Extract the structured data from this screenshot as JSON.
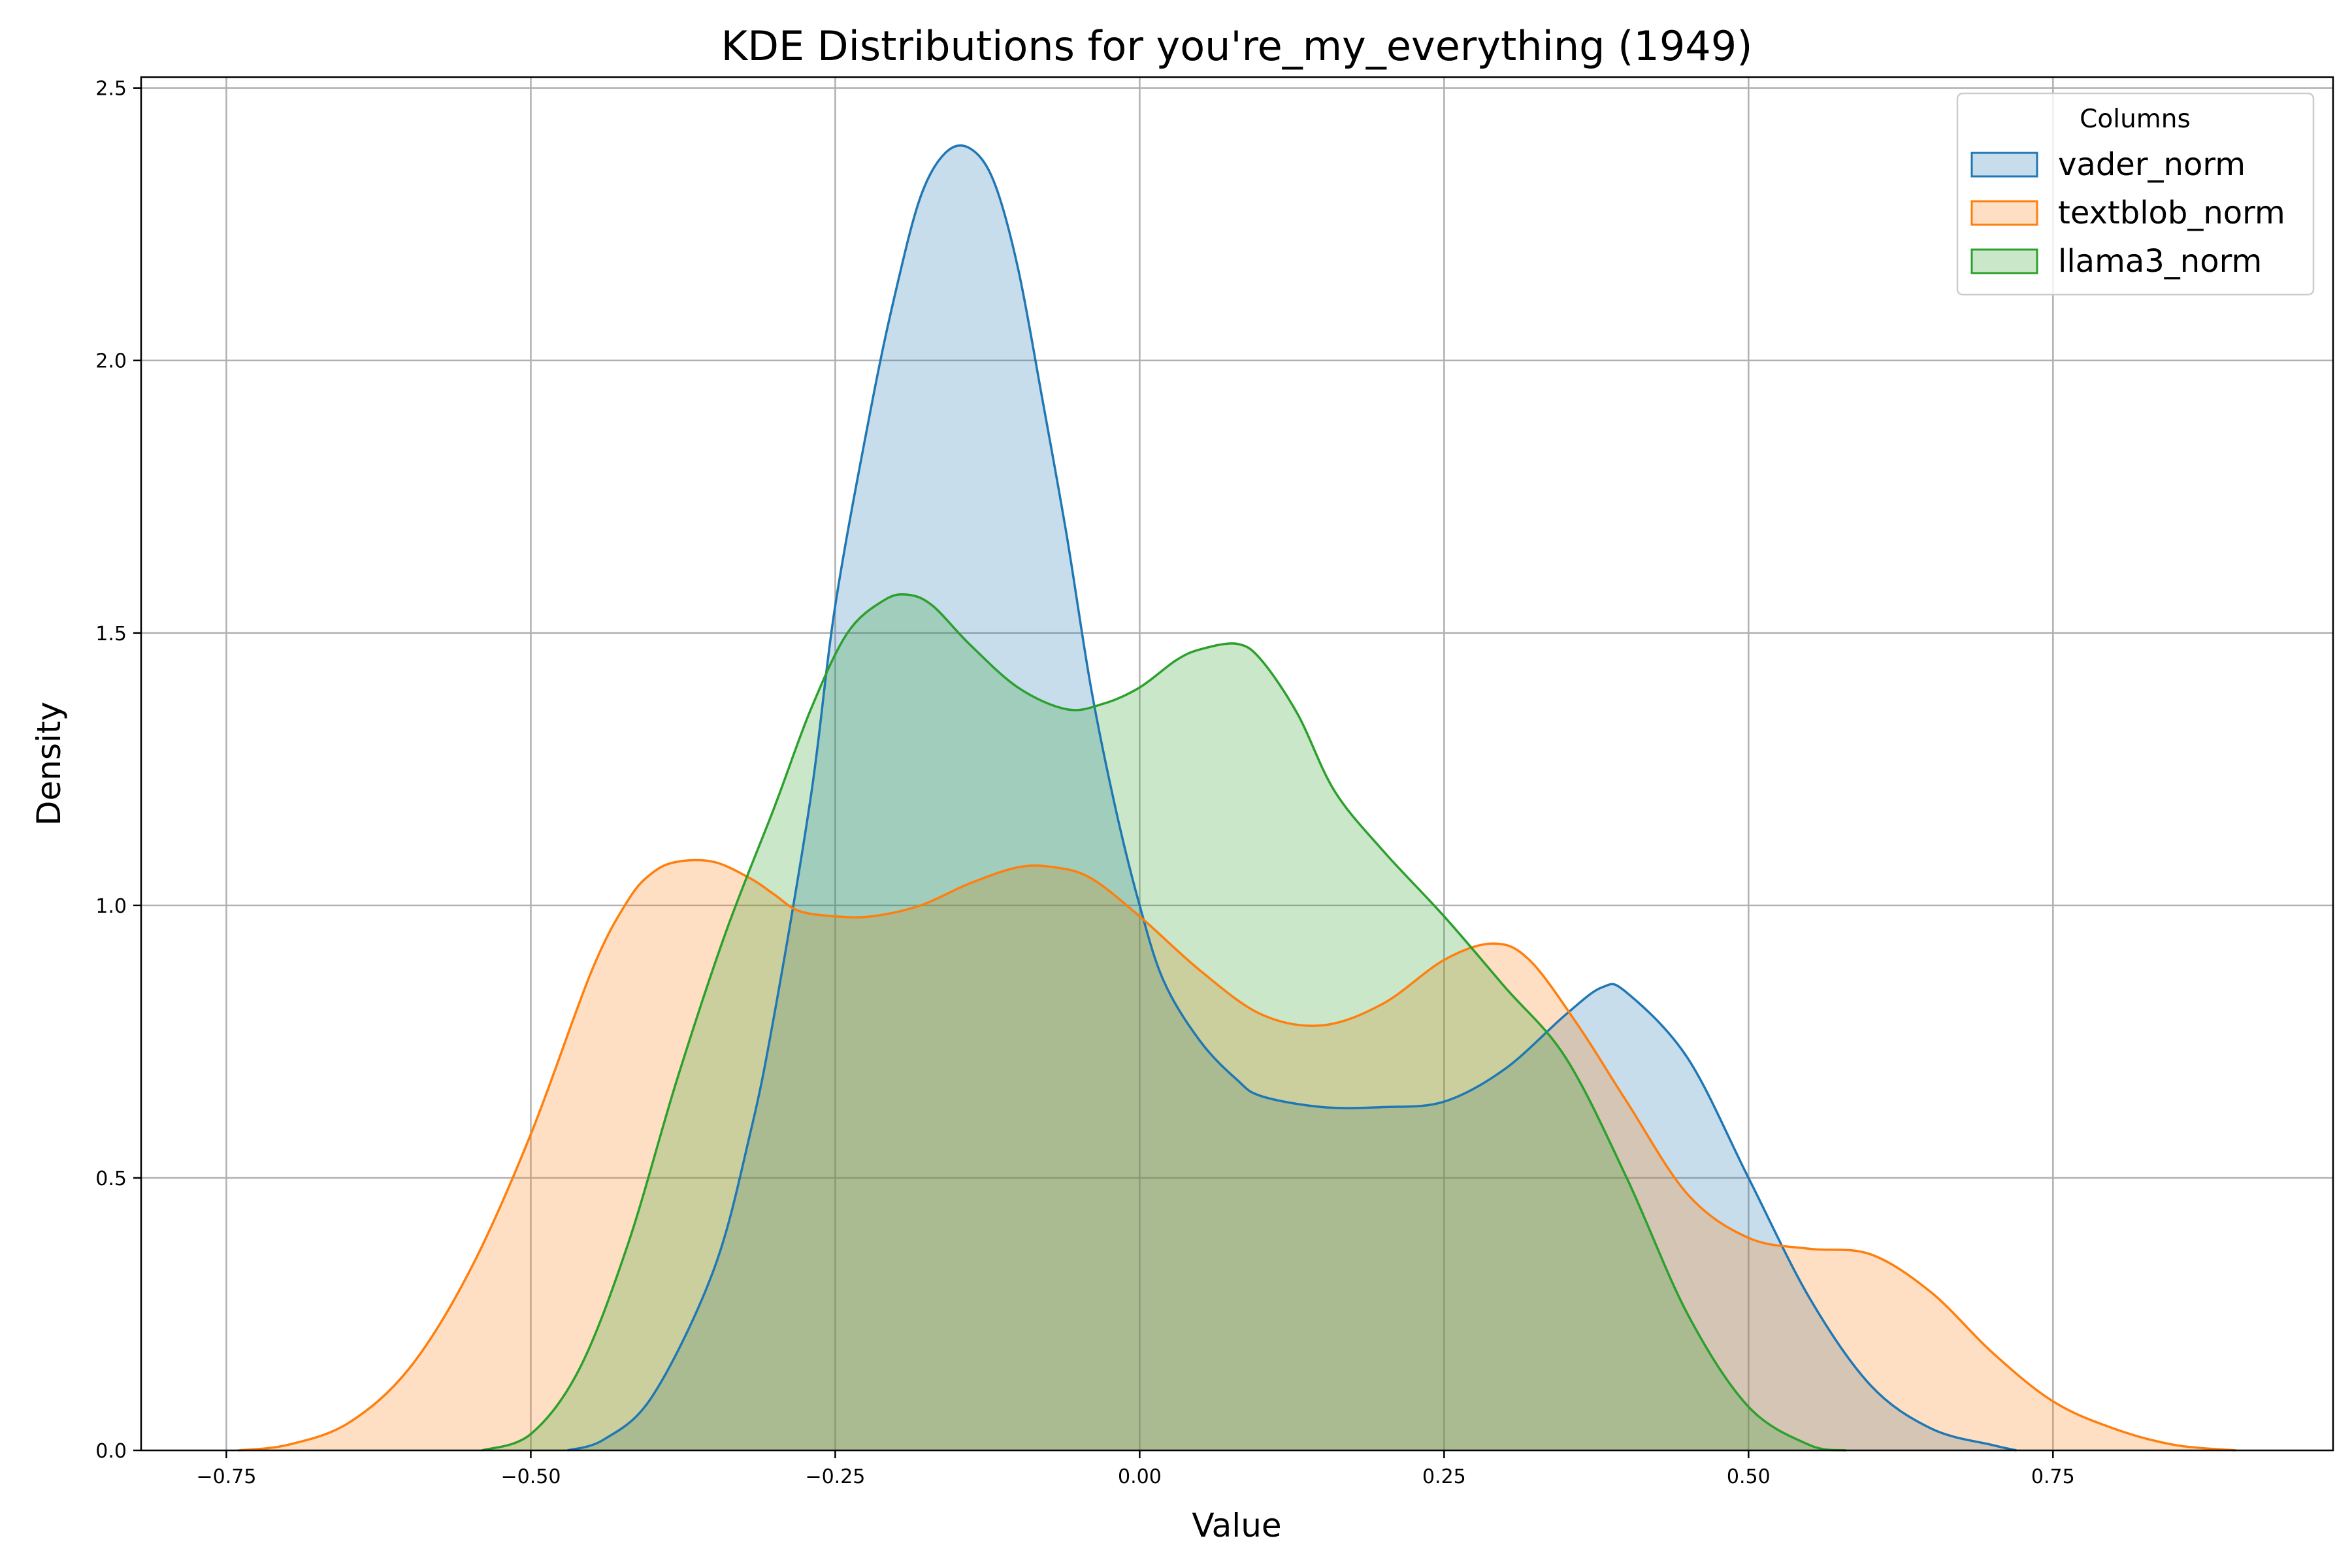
{
  "chart_data": {
    "type": "area",
    "title": "KDE Distributions for you're_my_everything (1949)",
    "xlabel": "Value",
    "ylabel": "Density",
    "xlim": [
      -0.82,
      0.98
    ],
    "ylim": [
      0,
      2.52
    ],
    "xticks": [
      -0.75,
      -0.5,
      -0.25,
      0.0,
      0.25,
      0.5,
      0.75
    ],
    "xtick_labels": [
      "−0.75",
      "−0.50",
      "−0.25",
      "0.00",
      "0.25",
      "0.50",
      "0.75"
    ],
    "yticks": [
      0.0,
      0.5,
      1.0,
      1.5,
      2.0,
      2.5
    ],
    "ytick_labels": [
      "0.0",
      "0.5",
      "1.0",
      "1.5",
      "2.0",
      "2.5"
    ],
    "grid": true,
    "legend": {
      "title": "Columns",
      "position": "top-right"
    },
    "series": [
      {
        "name": "vader_norm",
        "color": "#1f77b4",
        "x": [
          -0.47,
          -0.44,
          -0.4,
          -0.35,
          -0.32,
          -0.3,
          -0.27,
          -0.25,
          -0.22,
          -0.2,
          -0.18,
          -0.16,
          -0.14,
          -0.12,
          -0.1,
          -0.08,
          -0.06,
          -0.04,
          -0.02,
          0.0,
          0.02,
          0.05,
          0.08,
          0.1,
          0.15,
          0.2,
          0.25,
          0.3,
          0.35,
          0.38,
          0.4,
          0.45,
          0.5,
          0.55,
          0.6,
          0.65,
          0.7,
          0.72
        ],
        "y": [
          0.0,
          0.02,
          0.1,
          0.33,
          0.58,
          0.8,
          1.2,
          1.55,
          1.92,
          2.13,
          2.3,
          2.38,
          2.39,
          2.33,
          2.17,
          1.93,
          1.68,
          1.4,
          1.18,
          1.0,
          0.86,
          0.75,
          0.68,
          0.65,
          0.63,
          0.63,
          0.64,
          0.7,
          0.8,
          0.85,
          0.84,
          0.72,
          0.5,
          0.28,
          0.12,
          0.04,
          0.01,
          0.0
        ]
      },
      {
        "name": "textblob_norm",
        "color": "#ff7f0e",
        "x": [
          -0.74,
          -0.7,
          -0.65,
          -0.6,
          -0.55,
          -0.5,
          -0.45,
          -0.42,
          -0.4,
          -0.38,
          -0.35,
          -0.32,
          -0.3,
          -0.28,
          -0.25,
          -0.22,
          -0.18,
          -0.14,
          -0.1,
          -0.07,
          -0.04,
          0.0,
          0.05,
          0.1,
          0.15,
          0.2,
          0.25,
          0.29,
          0.32,
          0.36,
          0.4,
          0.45,
          0.5,
          0.55,
          0.6,
          0.65,
          0.7,
          0.75,
          0.8,
          0.85,
          0.9
        ],
        "y": [
          0.0,
          0.01,
          0.05,
          0.15,
          0.33,
          0.58,
          0.88,
          1.01,
          1.06,
          1.08,
          1.08,
          1.05,
          1.02,
          0.99,
          0.98,
          0.98,
          1.0,
          1.04,
          1.07,
          1.07,
          1.05,
          0.98,
          0.88,
          0.8,
          0.78,
          0.82,
          0.9,
          0.93,
          0.9,
          0.78,
          0.64,
          0.47,
          0.39,
          0.37,
          0.36,
          0.29,
          0.18,
          0.09,
          0.04,
          0.01,
          0.0
        ]
      },
      {
        "name": "llama3_norm",
        "color": "#2ca02c",
        "x": [
          -0.54,
          -0.5,
          -0.46,
          -0.42,
          -0.38,
          -0.34,
          -0.3,
          -0.27,
          -0.24,
          -0.21,
          -0.19,
          -0.17,
          -0.14,
          -0.1,
          -0.06,
          -0.03,
          0.0,
          0.03,
          0.05,
          0.08,
          0.1,
          0.13,
          0.16,
          0.2,
          0.25,
          0.3,
          0.35,
          0.4,
          0.45,
          0.5,
          0.55,
          0.58
        ],
        "y": [
          0.0,
          0.03,
          0.15,
          0.38,
          0.68,
          0.95,
          1.18,
          1.36,
          1.5,
          1.56,
          1.57,
          1.55,
          1.48,
          1.4,
          1.36,
          1.37,
          1.4,
          1.45,
          1.47,
          1.48,
          1.45,
          1.35,
          1.21,
          1.1,
          0.98,
          0.85,
          0.72,
          0.5,
          0.25,
          0.08,
          0.01,
          0.0
        ]
      }
    ]
  }
}
